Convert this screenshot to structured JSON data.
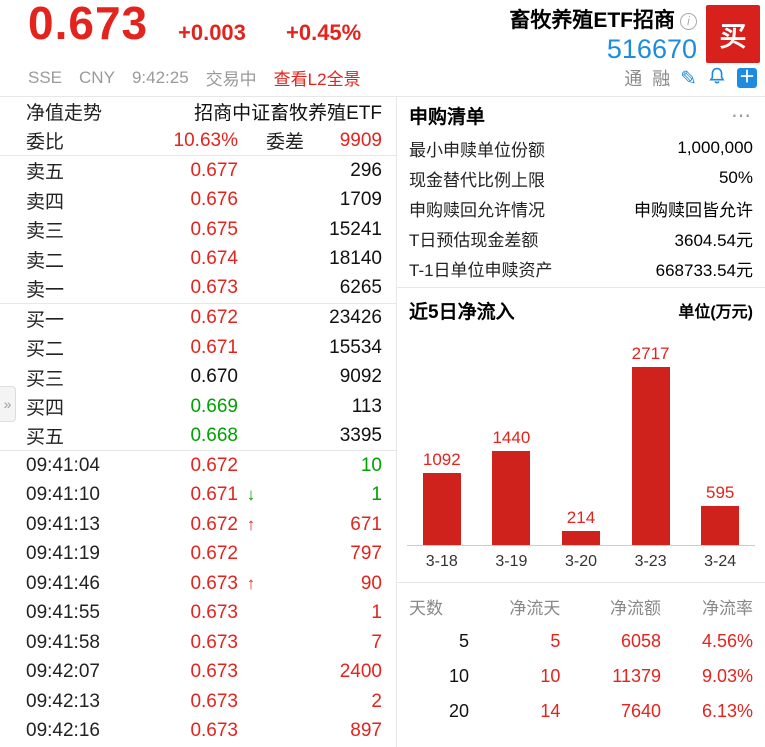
{
  "colors": {
    "red": "#e3231d",
    "green": "#00a100",
    "blue": "#1d8ce0",
    "bar": "#d0221c",
    "buy_bg": "#d8201c"
  },
  "header": {
    "price": "0.673",
    "change": "+0.003",
    "change_pct": "+0.45%",
    "title": "畜牧养殖ETF招商",
    "code": "516670",
    "buy_label": "买",
    "exchange": "SSE",
    "currency": "CNY",
    "time": "9:42:25",
    "status": "交易中",
    "l2_link": "查看L2全景",
    "tags": [
      "通",
      "融"
    ]
  },
  "left": {
    "tab": "净值走势",
    "fund_name": "招商中证畜牧养殖ETF",
    "weibi_label": "委比",
    "weibi_value": "10.63%",
    "weicha_label": "委差",
    "weicha_value": "9909",
    "book": [
      {
        "label": "卖五",
        "price": "0.677",
        "pc": "red",
        "vol": "296"
      },
      {
        "label": "卖四",
        "price": "0.676",
        "pc": "red",
        "vol": "1709"
      },
      {
        "label": "卖三",
        "price": "0.675",
        "pc": "red",
        "vol": "15241"
      },
      {
        "label": "卖二",
        "price": "0.674",
        "pc": "red",
        "vol": "18140"
      },
      {
        "label": "卖一",
        "price": "0.673",
        "pc": "red",
        "vol": "6265"
      },
      {
        "label": "买一",
        "price": "0.672",
        "pc": "red",
        "vol": "23426"
      },
      {
        "label": "买二",
        "price": "0.671",
        "pc": "red",
        "vol": "15534"
      },
      {
        "label": "买三",
        "price": "0.670",
        "pc": "black",
        "vol": "9092"
      },
      {
        "label": "买四",
        "price": "0.669",
        "pc": "green",
        "vol": "113"
      },
      {
        "label": "买五",
        "price": "0.668",
        "pc": "green",
        "vol": "3395"
      }
    ],
    "ticks": [
      {
        "time": "09:41:04",
        "price": "0.672",
        "pc": "red",
        "arrow": "",
        "ac": "",
        "vol": "10",
        "vc": "green"
      },
      {
        "time": "09:41:10",
        "price": "0.671",
        "pc": "red",
        "arrow": "↓",
        "ac": "green",
        "vol": "1",
        "vc": "green"
      },
      {
        "time": "09:41:13",
        "price": "0.672",
        "pc": "red",
        "arrow": "↑",
        "ac": "red",
        "vol": "671",
        "vc": "red"
      },
      {
        "time": "09:41:19",
        "price": "0.672",
        "pc": "red",
        "arrow": "",
        "ac": "",
        "vol": "797",
        "vc": "red"
      },
      {
        "time": "09:41:46",
        "price": "0.673",
        "pc": "red",
        "arrow": "↑",
        "ac": "red",
        "vol": "90",
        "vc": "red"
      },
      {
        "time": "09:41:55",
        "price": "0.673",
        "pc": "red",
        "arrow": "",
        "ac": "",
        "vol": "1",
        "vc": "red"
      },
      {
        "time": "09:41:58",
        "price": "0.673",
        "pc": "red",
        "arrow": "",
        "ac": "",
        "vol": "7",
        "vc": "red"
      },
      {
        "time": "09:42:07",
        "price": "0.673",
        "pc": "red",
        "arrow": "",
        "ac": "",
        "vol": "2400",
        "vc": "red"
      },
      {
        "time": "09:42:13",
        "price": "0.673",
        "pc": "red",
        "arrow": "",
        "ac": "",
        "vol": "2",
        "vc": "red"
      },
      {
        "time": "09:42:16",
        "price": "0.673",
        "pc": "red",
        "arrow": "",
        "ac": "",
        "vol": "897",
        "vc": "red"
      }
    ],
    "collapse_glyph": "»"
  },
  "purchase": {
    "title": "申购清单",
    "more": "⋯",
    "rows": [
      {
        "label": "最小申赎单位份额",
        "value": "1,000,000"
      },
      {
        "label": "现金替代比例上限",
        "value": "50%"
      },
      {
        "label": "申购赎回允许情况",
        "value": "申购赎回皆允许"
      },
      {
        "label": "T日预估现金差额",
        "value": "3604.54元"
      },
      {
        "label": "T-1日单位申赎资产",
        "value": "668733.54元"
      }
    ]
  },
  "chart_data": {
    "type": "bar",
    "title": "近5日净流入",
    "unit": "单位(万元)",
    "categories": [
      "3-18",
      "3-19",
      "3-20",
      "3-23",
      "3-24"
    ],
    "values": [
      1092,
      1440,
      214,
      2717,
      595
    ],
    "ylim": [
      0,
      2717
    ],
    "bar_color": "#d0221c",
    "legend_position": "none",
    "grid": false
  },
  "flow_table": {
    "headers": [
      "天数",
      "净流天",
      "净流额",
      "净流率"
    ],
    "rows": [
      [
        "5",
        "5",
        "6058",
        "4.56%"
      ],
      [
        "10",
        "10",
        "11379",
        "9.03%"
      ],
      [
        "20",
        "14",
        "7640",
        "6.13%"
      ]
    ]
  }
}
